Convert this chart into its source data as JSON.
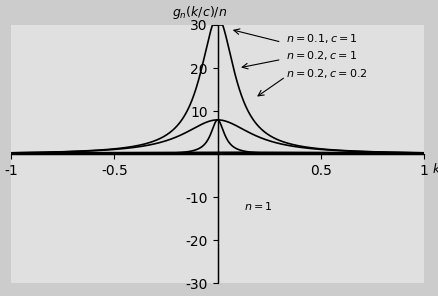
{
  "title": "$g_n(k/c)/n$",
  "xlabel": "$k$",
  "xlim": [
    -1,
    1
  ],
  "ylim": [
    -30,
    30
  ],
  "xticks": [
    -1,
    -0.5,
    0.5,
    1
  ],
  "yticks": [
    -30,
    -20,
    -10,
    10,
    20,
    30
  ],
  "xtick_labels": [
    "-1",
    "-0.5",
    "0.5",
    "1"
  ],
  "ytick_labels": [
    "-30",
    "-20",
    "-10",
    "10",
    "20",
    "30"
  ],
  "curves": [
    {
      "n": 0.1,
      "c": 1.0,
      "label": "$n = 0.1, c = 1$",
      "lw": 1.2
    },
    {
      "n": 0.2,
      "c": 1.0,
      "label": "$n = 0.2, c = 1$",
      "lw": 1.2
    },
    {
      "n": 0.2,
      "c": 0.2,
      "label": "$n = 0.2, c = 0.2$",
      "lw": 1.2
    },
    {
      "n": 1.0,
      "c": 1.0,
      "label": "$n = 1$",
      "lw": 2.0
    }
  ],
  "background_color": "#cccccc",
  "plot_bg_color": "#e0e0e0",
  "line_color": "#000000"
}
